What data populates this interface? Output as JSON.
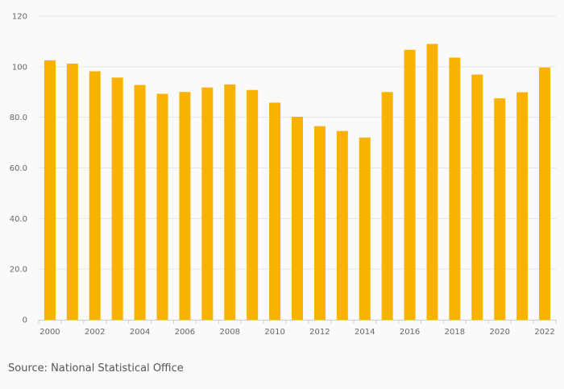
{
  "chart_data": {
    "type": "bar",
    "title": "",
    "xlabel": "",
    "ylabel": "",
    "categories": [
      "2000",
      "2001",
      "2002",
      "2003",
      "2004",
      "2005",
      "2006",
      "2007",
      "2008",
      "2009",
      "2010",
      "2011",
      "2012",
      "2013",
      "2014",
      "2015",
      "2016",
      "2017",
      "2018",
      "2019",
      "2020",
      "2021",
      "2022"
    ],
    "x_tick_labels": [
      "2000",
      "2002",
      "2004",
      "2006",
      "2008",
      "2010",
      "2012",
      "2014",
      "2016",
      "2018",
      "2020",
      "2022"
    ],
    "values": [
      102.5,
      101.2,
      98.2,
      95.7,
      92.8,
      89.3,
      90.0,
      91.8,
      93.0,
      90.8,
      85.8,
      80.2,
      76.5,
      74.6,
      72.0,
      90.0,
      106.7,
      109.0,
      103.6,
      96.9,
      87.5,
      89.9,
      99.7
    ],
    "ylim": [
      0,
      120
    ],
    "y_ticks": [
      {
        "value": 0,
        "label": "0"
      },
      {
        "value": 20,
        "label": "20.0"
      },
      {
        "value": 40,
        "label": "40.0"
      },
      {
        "value": 60,
        "label": "60.0"
      },
      {
        "value": 80,
        "label": "80.0"
      },
      {
        "value": 100,
        "label": "100"
      },
      {
        "value": 120,
        "label": "120"
      }
    ],
    "grid": true,
    "bar_color": "#F9B200",
    "grid_color": "#e6e6e6",
    "axis_color": "#cccccc"
  },
  "footer": {
    "source": "Source: National Statistical Office"
  }
}
